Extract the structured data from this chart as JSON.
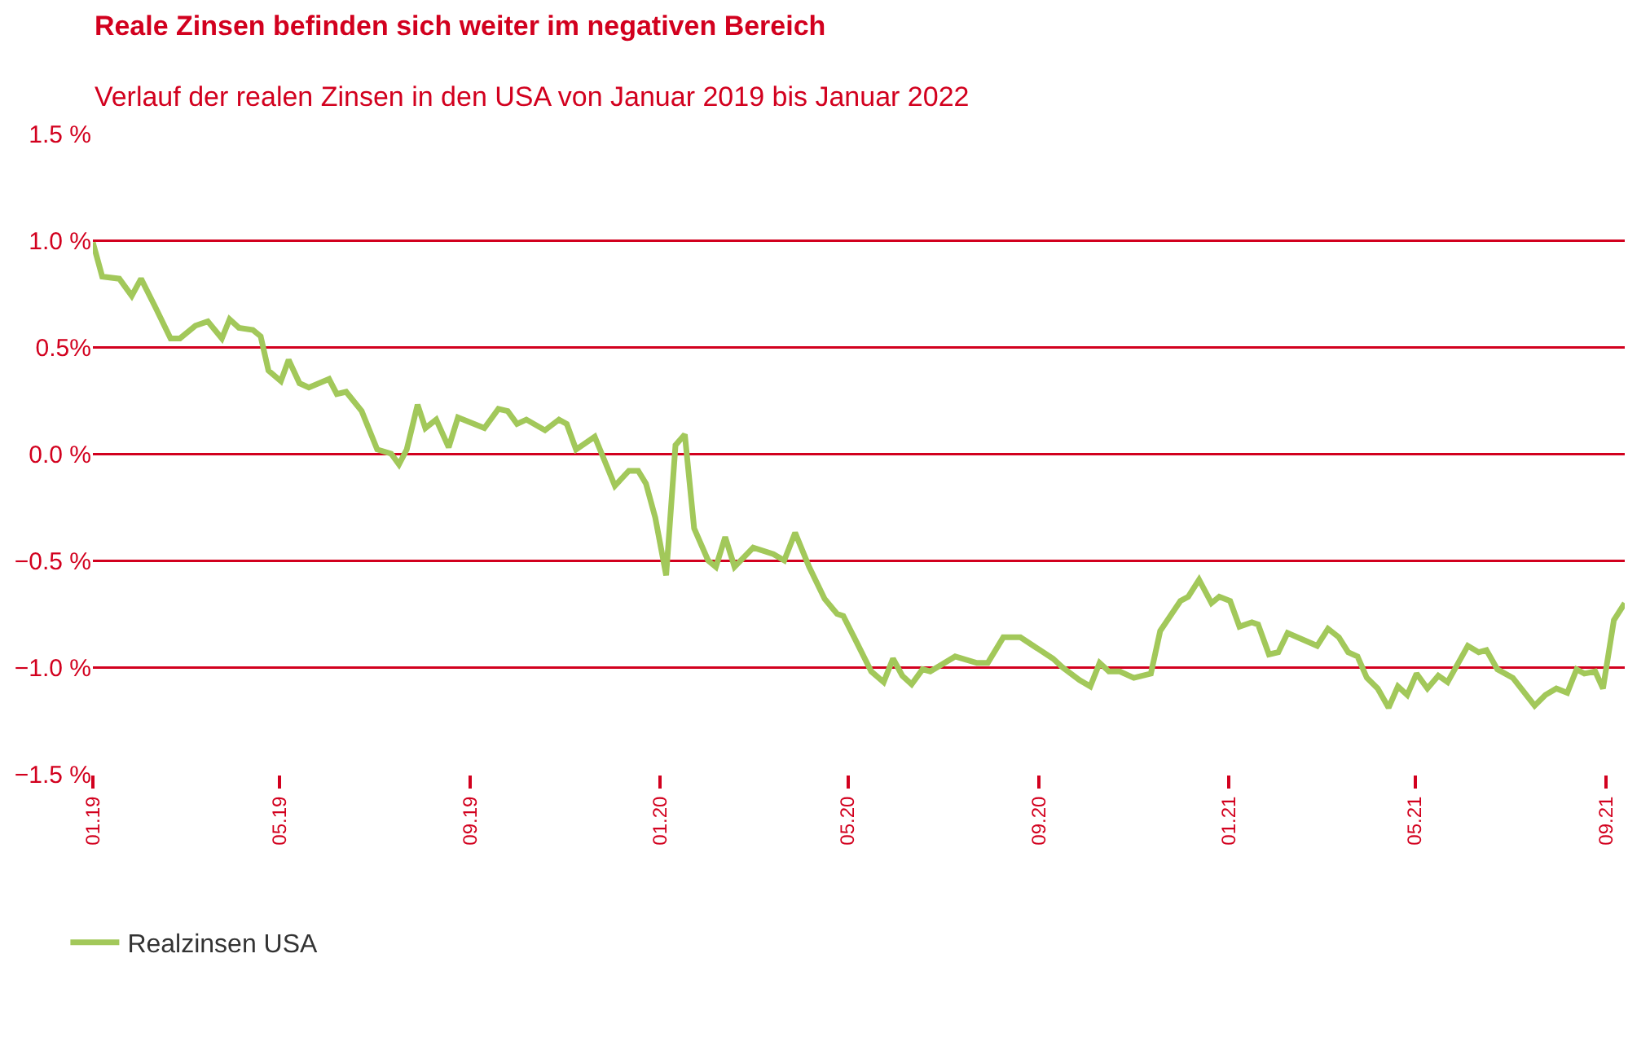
{
  "chart_data": {
    "type": "line",
    "title": "Reale Zinsen befinden sich weiter im negativen Bereich",
    "subtitle": "Verlauf der realen Zinsen in den USA von Januar 2019 bis Januar 2022",
    "x": [
      "2019-01-01",
      "2019-01-07",
      "2019-01-18",
      "2019-01-26",
      "2019-02-01",
      "2019-02-10",
      "2019-02-20",
      "2019-02-26",
      "2019-03-08",
      "2019-03-16",
      "2019-03-25",
      "2019-03-30",
      "2019-04-05",
      "2019-04-14",
      "2019-04-19",
      "2019-04-24",
      "2019-05-02",
      "2019-05-07",
      "2019-05-14",
      "2019-05-20",
      "2019-06-02",
      "2019-06-07",
      "2019-06-13",
      "2019-06-23",
      "2019-07-03",
      "2019-07-12",
      "2019-07-17",
      "2019-07-22",
      "2019-07-29",
      "2019-08-03",
      "2019-08-10",
      "2019-08-18",
      "2019-08-24",
      "2019-09-10",
      "2019-09-19",
      "2019-09-25",
      "2019-10-01",
      "2019-10-07",
      "2019-10-19",
      "2019-10-28",
      "2019-11-02",
      "2019-11-08",
      "2019-11-20",
      "2019-12-03",
      "2019-12-12",
      "2019-12-18",
      "2019-12-23",
      "2019-12-29",
      "2020-01-05",
      "2020-01-11",
      "2020-01-17",
      "2020-01-23",
      "2020-02-01",
      "2020-02-06",
      "2020-02-12",
      "2020-02-18",
      "2020-03-01",
      "2020-03-14",
      "2020-03-21",
      "2020-03-28",
      "2020-04-06",
      "2020-04-16",
      "2020-04-24",
      "2020-04-28",
      "2020-05-05",
      "2020-05-16",
      "2020-05-24",
      "2020-05-30",
      "2020-06-05",
      "2020-06-11",
      "2020-06-18",
      "2020-06-23",
      "2020-07-09",
      "2020-07-23",
      "2020-07-30",
      "2020-08-09",
      "2020-08-20",
      "2020-09-10",
      "2020-09-16",
      "2020-09-27",
      "2020-10-04",
      "2020-10-10",
      "2020-10-16",
      "2020-10-23",
      "2020-11-01",
      "2020-11-12",
      "2020-11-18",
      "2020-12-01",
      "2020-12-06",
      "2020-12-13",
      "2020-12-21",
      "2020-12-26",
      "2021-01-02",
      "2021-01-08",
      "2021-01-16",
      "2021-01-20",
      "2021-01-27",
      "2021-02-02",
      "2021-02-08",
      "2021-02-27",
      "2021-03-06",
      "2021-03-13",
      "2021-03-19",
      "2021-03-25",
      "2021-03-31",
      "2021-04-07",
      "2021-04-14",
      "2021-04-20",
      "2021-04-26",
      "2021-05-02",
      "2021-05-09",
      "2021-05-16",
      "2021-05-22",
      "2021-06-04",
      "2021-06-11",
      "2021-06-16",
      "2021-06-23",
      "2021-07-03",
      "2021-07-17",
      "2021-07-24",
      "2021-07-31",
      "2021-08-07",
      "2021-08-13",
      "2021-08-18",
      "2021-08-25",
      "2021-08-30",
      "2021-09-06",
      "2021-09-13"
    ],
    "series": [
      {
        "name": "Realzinsen USA",
        "color": "#a2c85a",
        "values": [
          0.99,
          0.83,
          0.82,
          0.74,
          0.82,
          0.69,
          0.54,
          0.54,
          0.6,
          0.62,
          0.54,
          0.63,
          0.59,
          0.58,
          0.55,
          0.39,
          0.34,
          0.44,
          0.33,
          0.31,
          0.35,
          0.28,
          0.29,
          0.2,
          0.02,
          0.0,
          -0.05,
          0.02,
          0.23,
          0.12,
          0.16,
          0.03,
          0.17,
          0.12,
          0.21,
          0.2,
          0.14,
          0.16,
          0.11,
          0.16,
          0.14,
          0.02,
          0.08,
          -0.15,
          -0.08,
          -0.08,
          -0.14,
          -0.3,
          -0.57,
          0.04,
          0.09,
          -0.35,
          -0.5,
          -0.53,
          -0.39,
          -0.53,
          -0.44,
          -0.47,
          -0.5,
          -0.37,
          -0.53,
          -0.68,
          -0.75,
          -0.76,
          -0.86,
          -1.02,
          -1.07,
          -0.96,
          -1.04,
          -1.08,
          -1.01,
          -1.02,
          -0.95,
          -0.98,
          -0.98,
          -0.86,
          -0.86,
          -0.96,
          -1.0,
          -1.06,
          -1.09,
          -0.98,
          -1.02,
          -1.02,
          -1.05,
          -1.03,
          -0.83,
          -0.69,
          -0.67,
          -0.59,
          -0.7,
          -0.67,
          -0.69,
          -0.81,
          -0.79,
          -0.8,
          -0.94,
          -0.93,
          -0.84,
          -0.9,
          -0.82,
          -0.86,
          -0.93,
          -0.95,
          -1.05,
          -1.1,
          -1.19,
          -1.09,
          -1.13,
          -1.03,
          -1.1,
          -1.04,
          -1.07,
          -0.9,
          -0.93,
          -0.92,
          -1.01,
          -1.05,
          -1.18,
          -1.13,
          -1.1,
          -1.12,
          -1.01,
          -1.03,
          -1.02,
          -1.1,
          -0.78,
          -0.7
        ]
      }
    ],
    "xlim": [
      "2019-01-01",
      "2021-09-13"
    ],
    "xticks": [
      {
        "value": "2019-01-01",
        "label": "01.19"
      },
      {
        "value": "2019-05-01",
        "label": "05.19"
      },
      {
        "value": "2019-09-01",
        "label": "09.19"
      },
      {
        "value": "2020-01-01",
        "label": "01.20"
      },
      {
        "value": "2020-05-01",
        "label": "05.20"
      },
      {
        "value": "2020-09-01",
        "label": "09.20"
      },
      {
        "value": "2021-01-01",
        "label": "01.21"
      },
      {
        "value": "2021-05-01",
        "label": "05.21"
      },
      {
        "value": "2021-09-01",
        "label": "09.21"
      }
    ],
    "ylim": [
      -1.5,
      1.5
    ],
    "yticks": [
      {
        "value": -1.5,
        "label": "−1.5 %"
      },
      {
        "value": -1.0,
        "label": "−1.0 %"
      },
      {
        "value": -0.5,
        "label": "−0.5 %"
      },
      {
        "value": 0,
        "label": "0.0 %"
      },
      {
        "value": 0.5,
        "label": "0.5%"
      },
      {
        "value": 1.0,
        "label": "1.0 %"
      },
      {
        "value": 1.5,
        "label": "1.5 %"
      }
    ],
    "grid": "y",
    "legend": "bottom left",
    "marker": "none",
    "line_style": "solid"
  }
}
